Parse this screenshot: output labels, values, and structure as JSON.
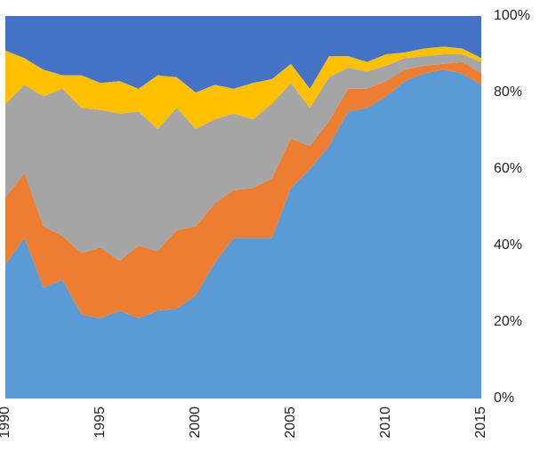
{
  "chart_data": {
    "type": "stacked_area",
    "x": [
      1990,
      1991,
      1992,
      1993,
      1994,
      1995,
      1996,
      1997,
      1998,
      1999,
      2000,
      2001,
      2002,
      2003,
      2004,
      2005,
      2006,
      2007,
      2008,
      2009,
      2010,
      2011,
      2012,
      2013,
      2014,
      2015
    ],
    "series": [
      {
        "color": "#5b9bd5",
        "values": [
          35,
          42,
          29,
          31,
          22,
          21,
          23,
          21,
          23,
          23.5,
          27,
          35.5,
          42,
          42,
          42,
          55,
          60,
          66,
          75,
          76,
          79,
          83,
          85,
          86,
          85,
          82
        ]
      },
      {
        "color": "#ed7d31",
        "values": [
          17.5,
          17,
          16,
          11.5,
          16,
          18.5,
          13,
          19,
          15.5,
          20.5,
          18,
          15.5,
          12.5,
          13,
          15.5,
          13,
          6,
          6.5,
          6,
          5,
          4,
          3,
          2,
          1.5,
          3,
          3
        ]
      },
      {
        "color": "#a5a5a5",
        "values": [
          24.5,
          23,
          34,
          38.5,
          38,
          36,
          38.5,
          35,
          32,
          32,
          25.5,
          22,
          20,
          18,
          19.5,
          14.5,
          10,
          11.5,
          5.5,
          4.5,
          4,
          3,
          2.5,
          2.5,
          2,
          3
        ]
      },
      {
        "color": "#ffc000",
        "values": [
          14,
          7,
          7,
          3.5,
          8.5,
          7,
          8.5,
          6,
          14,
          8,
          9.5,
          9,
          6.5,
          9.5,
          6.5,
          5,
          5,
          5.5,
          3,
          2.5,
          3,
          1.5,
          2,
          2,
          1.5,
          1
        ]
      },
      {
        "color": "#4472c4",
        "values": [
          9,
          11,
          14,
          15.5,
          15.5,
          17.5,
          17,
          19,
          15.5,
          16,
          20,
          18,
          19,
          17.5,
          16.5,
          12.5,
          19,
          10.5,
          10.5,
          12,
          10,
          9.5,
          8.5,
          8,
          8.5,
          11
        ]
      }
    ],
    "xlim": [
      1990,
      2015
    ],
    "xticks": [
      1990,
      1995,
      2000,
      2005,
      2010,
      2015
    ],
    "ylim": [
      0,
      100
    ],
    "yticks": [
      {
        "value": 0,
        "label": "0%"
      },
      {
        "value": 20,
        "label": "20%"
      },
      {
        "value": 40,
        "label": "40%"
      },
      {
        "value": 60,
        "label": "60%"
      },
      {
        "value": 80,
        "label": "80%"
      },
      {
        "value": 100,
        "label": "100%"
      }
    ]
  }
}
